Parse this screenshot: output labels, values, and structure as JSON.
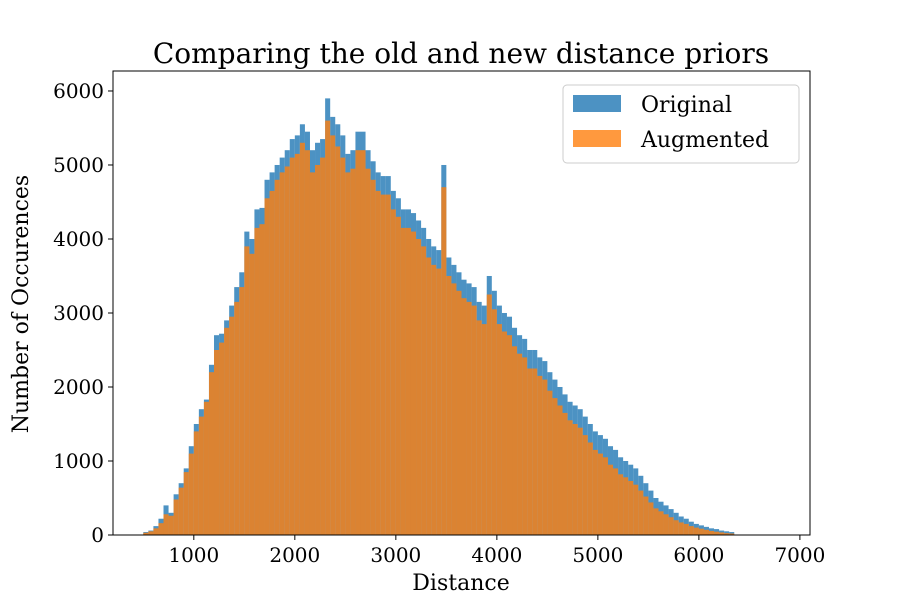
{
  "chart_data": {
    "type": "bar",
    "title": "Comparing the old and new distance priors",
    "xlabel": "Distance",
    "ylabel": "Number of Occurences",
    "xlim": [
      200,
      7100
    ],
    "ylim": [
      0,
      6270
    ],
    "xticks": [
      1000,
      2000,
      3000,
      4000,
      5000,
      6000,
      7000
    ],
    "yticks": [
      0,
      1000,
      2000,
      3000,
      4000,
      5000,
      6000
    ],
    "grid": false,
    "legend": "top-right",
    "bin_start": 500,
    "bin_width": 50,
    "series": [
      {
        "name": "Original",
        "color": "#1f77b4",
        "opacity": 0.8,
        "values": [
          40,
          60,
          120,
          220,
          400,
          300,
          550,
          700,
          900,
          1200,
          1500,
          1700,
          1830,
          2300,
          2700,
          2720,
          2900,
          3100,
          3350,
          3550,
          4100,
          4000,
          4400,
          4420,
          4800,
          4900,
          5000,
          5100,
          5200,
          5350,
          5400,
          5550,
          5450,
          5200,
          5300,
          5350,
          5900,
          5650,
          5550,
          5400,
          5150,
          5200,
          5450,
          5450,
          5200,
          5050,
          4900,
          4850,
          4850,
          4650,
          4550,
          4400,
          4400,
          4350,
          4250,
          4150,
          4000,
          3900,
          3850,
          5000,
          3750,
          3650,
          3550,
          3450,
          3400,
          3350,
          3150,
          3100,
          3500,
          3300,
          3100,
          3000,
          2950,
          2800,
          2700,
          2650,
          2500,
          2500,
          2400,
          2350,
          2200,
          2100,
          2000,
          1900,
          1800,
          1750,
          1700,
          1600,
          1500,
          1400,
          1350,
          1300,
          1200,
          1150,
          1050,
          1000,
          950,
          900,
          800,
          700,
          600,
          500,
          450,
          400,
          350,
          300,
          250,
          220,
          180,
          150,
          130,
          110,
          90,
          80,
          60,
          50,
          40
        ],
        "note_overrides": {}
      },
      {
        "name": "Augmented",
        "color": "#ff7f0e",
        "opacity": 0.8,
        "values": [
          30,
          50,
          90,
          160,
          280,
          260,
          480,
          640,
          850,
          1100,
          1400,
          1600,
          1800,
          2200,
          2500,
          2600,
          2800,
          2950,
          3150,
          3350,
          3900,
          3800,
          4150,
          4200,
          4550,
          4650,
          4800,
          4900,
          4980,
          5100,
          5150,
          5300,
          5200,
          4900,
          5000,
          5100,
          5600,
          5400,
          5250,
          5100,
          4900,
          4950,
          5200,
          5200,
          4950,
          4800,
          4650,
          4600,
          4600,
          4400,
          4300,
          4150,
          4150,
          4100,
          4000,
          3900,
          3750,
          3650,
          3600,
          4700,
          3500,
          3400,
          3300,
          3200,
          3150,
          3100,
          2900,
          2850,
          3250,
          3050,
          2850,
          2750,
          2700,
          2550,
          2450,
          2400,
          2250,
          2250,
          2150,
          2100,
          1950,
          1850,
          1750,
          1650,
          1550,
          1500,
          1450,
          1350,
          1250,
          1150,
          1100,
          1050,
          950,
          900,
          820,
          780,
          730,
          680,
          600,
          520,
          440,
          360,
          320,
          280,
          240,
          200,
          170,
          150,
          120,
          100,
          85,
          70,
          55,
          45,
          35,
          25,
          20
        ]
      }
    ]
  }
}
